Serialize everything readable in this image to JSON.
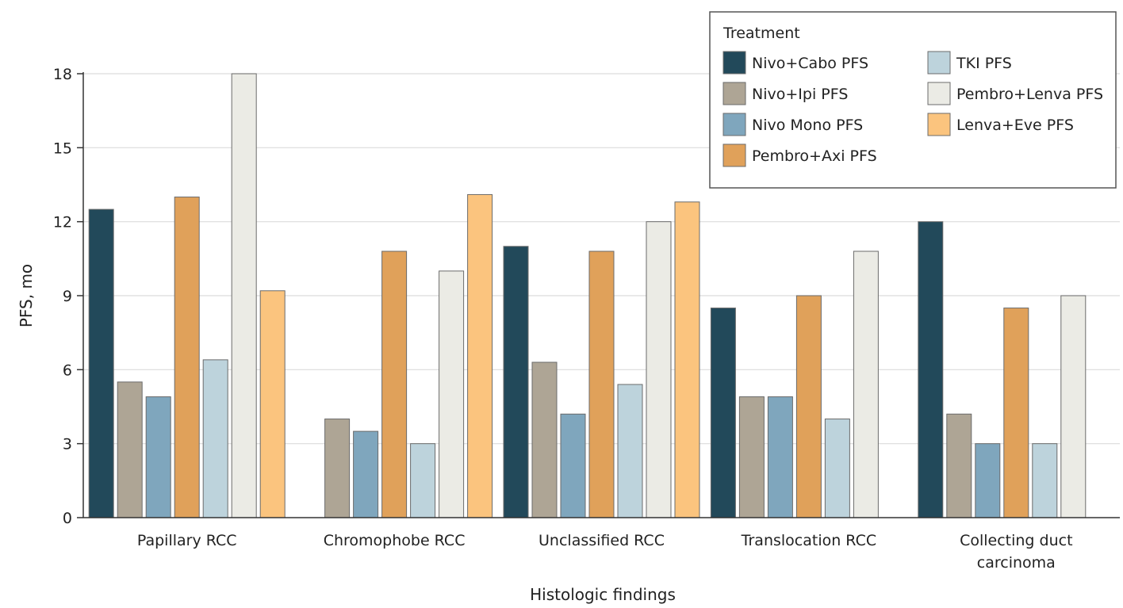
{
  "chart_data": {
    "type": "bar",
    "title": "",
    "xlabel": "Histologic findings",
    "ylabel": "PFS, mo",
    "ylim": [
      0,
      18
    ],
    "yticks": [
      0,
      3,
      6,
      9,
      12,
      15,
      18
    ],
    "grid": true,
    "legend_title": "Treatment",
    "legend_position": "top-right",
    "categories": [
      [
        "Papillary RCC"
      ],
      [
        "Chromophobe RCC"
      ],
      [
        "Unclassified RCC"
      ],
      [
        "Translocation RCC"
      ],
      [
        "Collecting duct",
        "carcinoma"
      ]
    ],
    "series": [
      {
        "name": "Nivo+Cabo PFS",
        "color": "#22495a",
        "values": [
          12.5,
          0,
          11.0,
          8.5,
          12.0
        ]
      },
      {
        "name": "Nivo+Ipi PFS",
        "color": "#aea595",
        "values": [
          5.5,
          4.0,
          6.3,
          4.9,
          4.2
        ]
      },
      {
        "name": "Nivo Mono PFS",
        "color": "#7fa6bd",
        "values": [
          4.9,
          3.5,
          4.2,
          4.9,
          3.0
        ]
      },
      {
        "name": "Pembro+Axi PFS",
        "color": "#e0a15a",
        "values": [
          13.0,
          10.8,
          10.8,
          9.0,
          8.5
        ]
      },
      {
        "name": "TKI PFS",
        "color": "#bdd3dc",
        "values": [
          6.4,
          3.0,
          5.4,
          4.0,
          3.0
        ]
      },
      {
        "name": "Pembro+Lenva PFS",
        "color": "#ebebe5",
        "values": [
          18.0,
          10.0,
          12.0,
          10.8,
          9.0
        ]
      },
      {
        "name": "Lenva+Eve PFS",
        "color": "#fbc47e",
        "values": [
          9.2,
          13.1,
          12.8,
          0,
          0
        ]
      }
    ]
  }
}
